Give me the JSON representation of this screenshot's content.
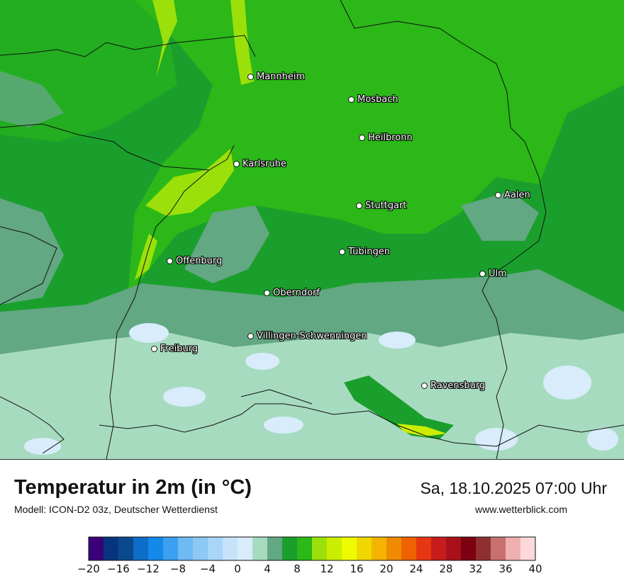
{
  "map": {
    "cities": [
      {
        "name": "Mannheim"
      },
      {
        "name": "Mosbach"
      },
      {
        "name": "Heilbronn"
      },
      {
        "name": "Karlsruhe"
      },
      {
        "name": "Aalen"
      },
      {
        "name": "Stuttgart"
      },
      {
        "name": "Tübingen"
      },
      {
        "name": "Offenburg"
      },
      {
        "name": "Ulm"
      },
      {
        "name": "Oberndorf"
      },
      {
        "name": "Villingen-Schwenningen"
      },
      {
        "name": "Freiburg"
      },
      {
        "name": "Ravensburg"
      }
    ]
  },
  "header": {
    "title": "Temperatur in 2m (in °C)",
    "subtitle": "Modell: ICON-D2 03z, Deutscher Wetterdienst",
    "datetime": "Sa, 18.10.2025 07:00 Uhr",
    "website": "www.wetterblick.com"
  },
  "legend": {
    "tick_labels": [
      "−20",
      "−16",
      "−12",
      "−8",
      "−4",
      "0",
      "4",
      "8",
      "12",
      "16",
      "20",
      "24",
      "28",
      "32",
      "36",
      "40"
    ],
    "colors": [
      "#3a007a",
      "#06347e",
      "#0a4a8c",
      "#0d6dc7",
      "#1489e9",
      "#3aa0ef",
      "#6ebaf3",
      "#8ec8f5",
      "#a9d6f8",
      "#c6e3fa",
      "#d8ecfb",
      "#a7dbc0",
      "#62a882",
      "#1a9f2c",
      "#2bb818",
      "#9be00a",
      "#cbee00",
      "#eefb00",
      "#f1d700",
      "#f3b300",
      "#f08a00",
      "#ee6200",
      "#e63612",
      "#c61c1c",
      "#a8101a",
      "#7d0011",
      "#8f3030",
      "#c87070",
      "#f0afb0",
      "#fdd9d9"
    ]
  },
  "colors": {
    "field_dark": "#1a9f2c",
    "field_mid": "#2bb818",
    "field_light": "#9be00a",
    "field_grey": "#62a882",
    "field_pale": "#a7dbc0",
    "field_ice": "#d8ecfb"
  }
}
